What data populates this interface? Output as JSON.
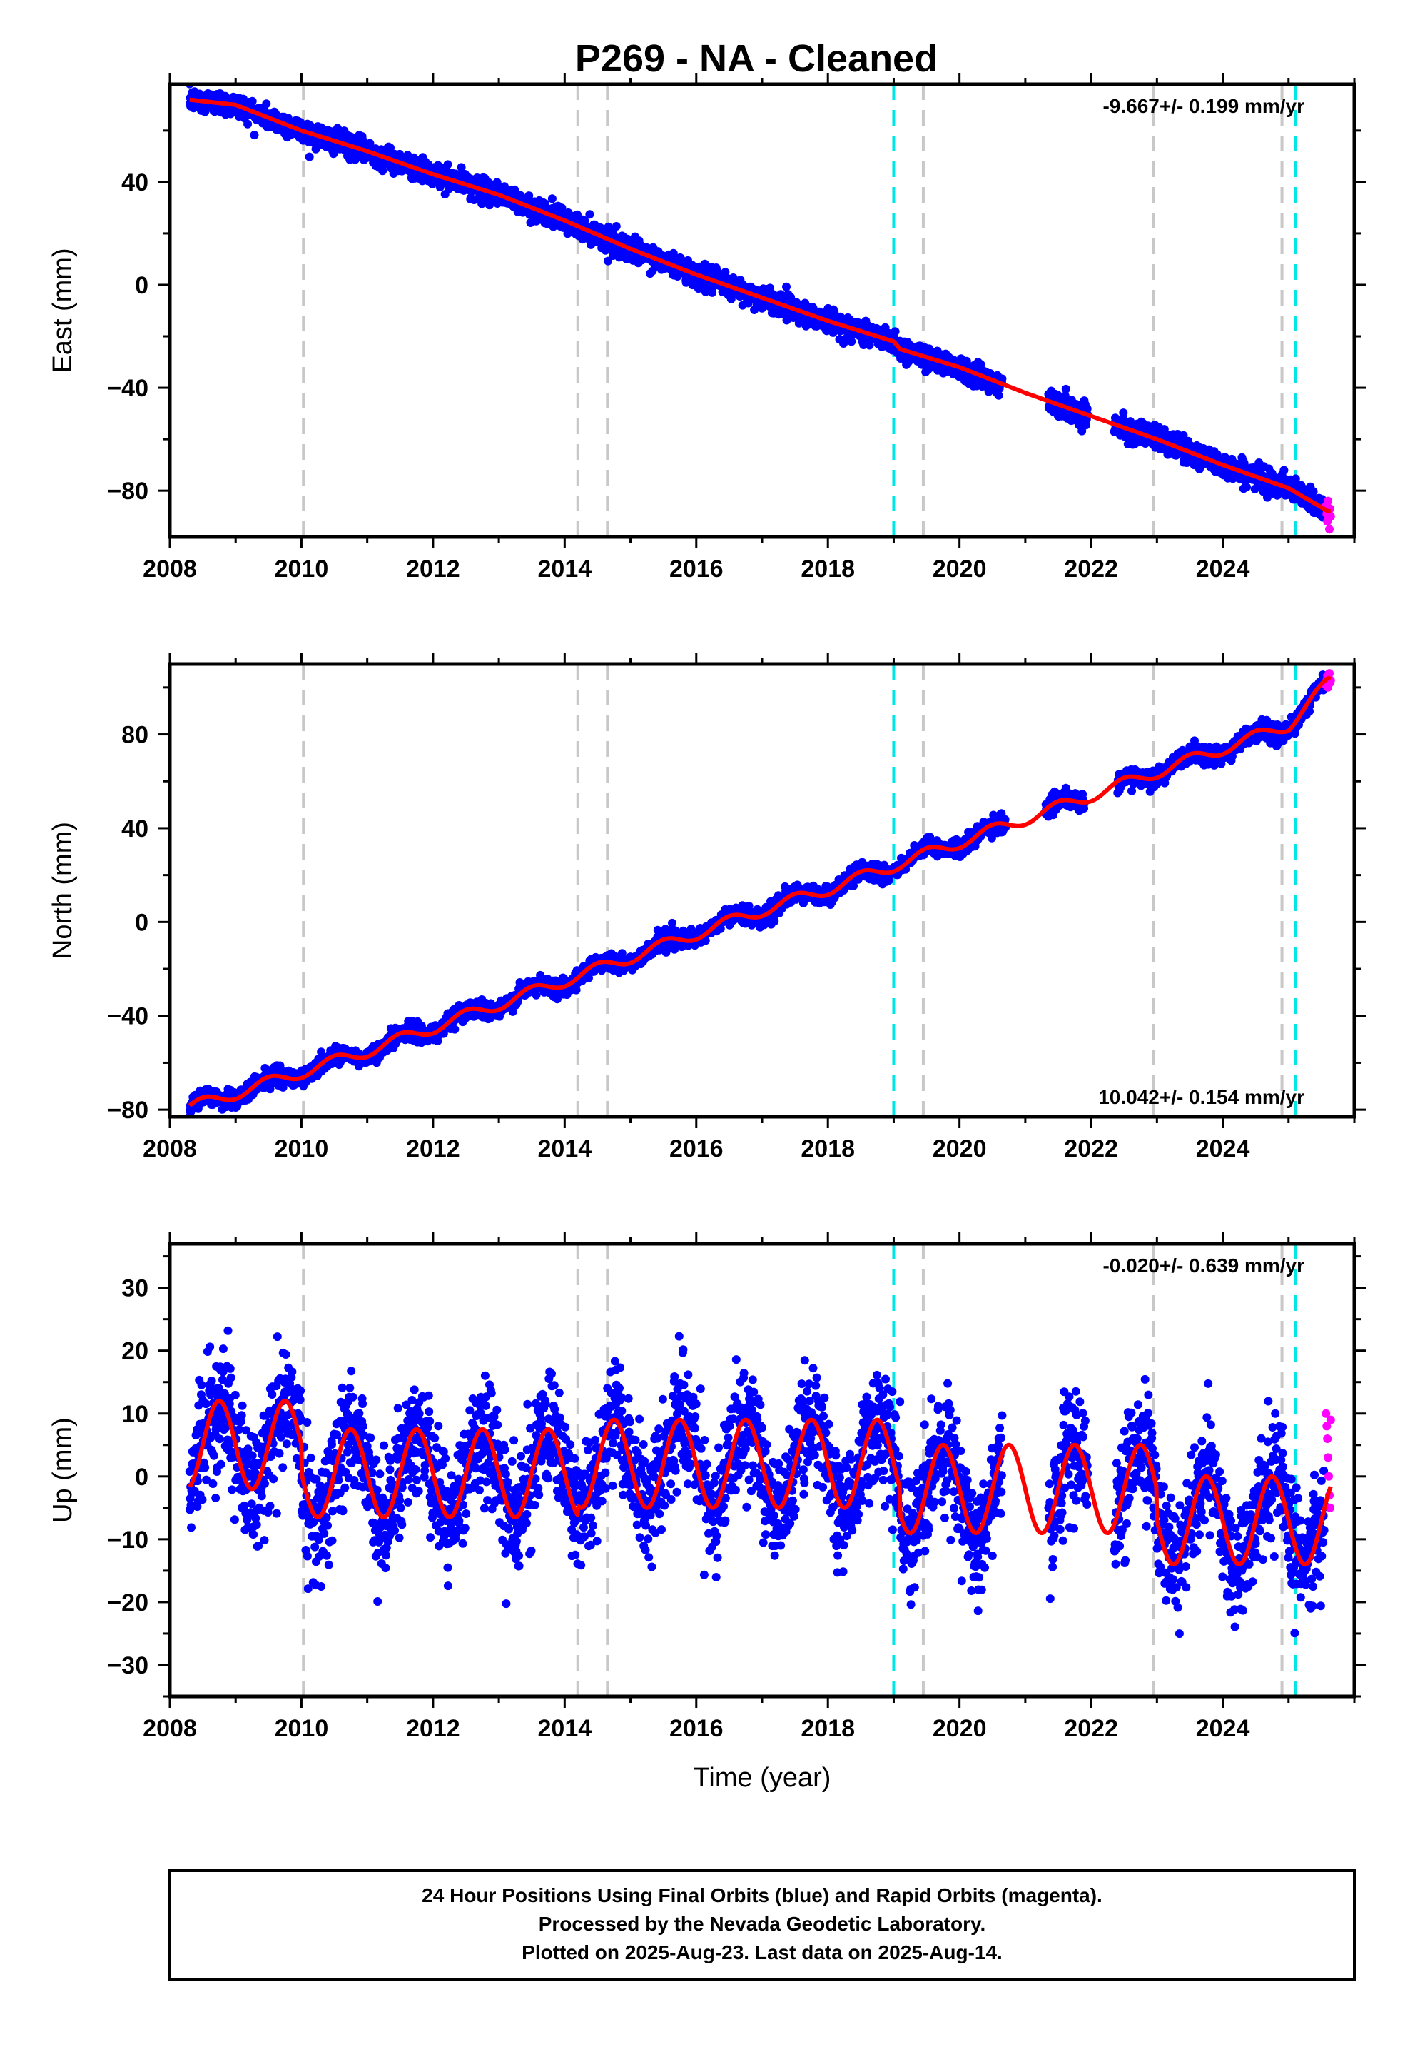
{
  "title": "P269  - NA - Cleaned",
  "colors": {
    "final_orbits": "#0000ff",
    "rapid_orbits": "#ff00ff",
    "model": "#ff0000",
    "event_gray": "#c8c8c8",
    "event_cyan": "#00e5e5"
  },
  "chart_data": [
    {
      "type": "scatter",
      "ylabel": "East (mm)",
      "xlabel": "",
      "xlim": [
        2008,
        2026
      ],
      "ylim": [
        -98,
        78
      ],
      "x_ticks": [
        2008,
        2010,
        2012,
        2014,
        2016,
        2018,
        2020,
        2022,
        2024
      ],
      "y_ticks": [
        -80,
        -40,
        0,
        40
      ],
      "rate": "-9.667+/- 0.199 mm/yr",
      "rate_position": "top-right",
      "model": {
        "x": [
          2008.3,
          2009.0,
          2010.0,
          2011.0,
          2012.0,
          2013.0,
          2014.0,
          2015.0,
          2016.0,
          2017.0,
          2018.0,
          2019.0,
          2019.1,
          2020.0,
          2021.0,
          2022.0,
          2023.0,
          2024.0,
          2025.0,
          2025.6
        ],
        "y": [
          72.0,
          70.0,
          60.0,
          52.0,
          43.0,
          35.0,
          25.0,
          14.0,
          4.0,
          -5.0,
          -14.0,
          -22.0,
          -25.0,
          -32.0,
          -42.0,
          -51.0,
          -60.0,
          -70.0,
          -79.0,
          -88.0
        ]
      },
      "final_orbits": {
        "x_range": [
          2008.3,
          2025.55
        ],
        "noise_mm": 2.2,
        "count": 3400,
        "gaps": [
          [
            2020.65,
            2021.35
          ],
          [
            2021.95,
            2022.35
          ]
        ]
      },
      "rapid_orbits": {
        "x": [
          2025.57,
          2025.58,
          2025.59,
          2025.6,
          2025.61,
          2025.62,
          2025.63,
          2025.64
        ],
        "y": [
          -86,
          -89,
          -92,
          -84,
          -88,
          -95,
          -87,
          -90
        ]
      }
    },
    {
      "type": "scatter",
      "ylabel": "North (mm)",
      "xlabel": "",
      "xlim": [
        2008,
        2026
      ],
      "ylim": [
        -83,
        110
      ],
      "x_ticks": [
        2008,
        2010,
        2012,
        2014,
        2016,
        2018,
        2020,
        2022,
        2024
      ],
      "y_ticks": [
        -80,
        -40,
        0,
        40,
        80
      ],
      "rate": "10.042+/- 0.154 mm/yr",
      "rate_position": "bottom-right",
      "model": {
        "x": [
          2008.3,
          2009.0,
          2010.0,
          2011.0,
          2012.0,
          2013.0,
          2014.0,
          2015.0,
          2016.0,
          2017.0,
          2018.0,
          2019.0,
          2020.0,
          2021.0,
          2022.0,
          2023.0,
          2024.0,
          2025.0,
          2025.6
        ],
        "y": [
          -79.0,
          -73.0,
          -64.0,
          -55.0,
          -45.0,
          -35.0,
          -25.0,
          -15.0,
          -5.0,
          5.0,
          14.0,
          24.0,
          34.0,
          44.0,
          54.0,
          64.0,
          74.0,
          84.0,
          102.0
        ],
        "seasonal_amplitude": 2.5
      },
      "final_orbits": {
        "x_range": [
          2008.3,
          2025.55
        ],
        "noise_mm": 1.8,
        "count": 3400,
        "gaps": [
          [
            2020.7,
            2021.3
          ],
          [
            2021.9,
            2022.4
          ]
        ]
      },
      "rapid_orbits": {
        "x": [
          2025.57,
          2025.58,
          2025.59,
          2025.6,
          2025.61,
          2025.62,
          2025.63,
          2025.64
        ],
        "y": [
          101,
          103,
          105,
          100,
          104,
          106,
          102,
          103
        ]
      }
    },
    {
      "type": "scatter",
      "ylabel": "Up (mm)",
      "xlabel": "Time (year)",
      "xlim": [
        2008,
        2026
      ],
      "ylim": [
        -35,
        37
      ],
      "x_ticks": [
        2008,
        2010,
        2012,
        2014,
        2016,
        2018,
        2020,
        2022,
        2024
      ],
      "y_ticks": [
        -30,
        -20,
        -10,
        0,
        10,
        20,
        30
      ],
      "rate": "-0.020+/- 0.639 mm/yr",
      "rate_position": "top-right",
      "model": {
        "segments": [
          {
            "x_range": [
              2008.3,
              2010.0
            ],
            "mean": 5.0,
            "amplitude": 7.0
          },
          {
            "x_range": [
              2010.0,
              2014.2
            ],
            "mean": 0.5,
            "amplitude": 7.0
          },
          {
            "x_range": [
              2014.2,
              2019.1
            ],
            "mean": 2.0,
            "amplitude": 7.0
          },
          {
            "x_range": [
              2019.1,
              2023.0
            ],
            "mean": -2.0,
            "amplitude": 7.0
          },
          {
            "x_range": [
              2023.0,
              2025.6
            ],
            "mean": -7.0,
            "amplitude": 7.0
          }
        ],
        "peak_phase_year_fraction": 0.75
      },
      "final_orbits": {
        "x_range": [
          2008.3,
          2025.55
        ],
        "noise_mm": 4.5,
        "count": 3400,
        "gaps": [
          [
            2020.65,
            2021.35
          ],
          [
            2021.95,
            2022.35
          ]
        ]
      },
      "rapid_orbits": {
        "x": [
          2025.57,
          2025.58,
          2025.59,
          2025.6,
          2025.61,
          2025.62,
          2025.63,
          2025.64
        ],
        "y": [
          10,
          8,
          6,
          3,
          0,
          -3,
          -5,
          9
        ]
      }
    }
  ],
  "events": {
    "gray": [
      2010.03,
      2014.2,
      2014.65,
      2019.45,
      2022.95,
      2024.9
    ],
    "cyan": [
      2019.0,
      2025.1
    ]
  },
  "footer": {
    "line1": "24 Hour Positions Using Final Orbits (blue) and Rapid Orbits (magenta).",
    "line2": "Processed by the Nevada Geodetic Laboratory.",
    "line3": "Plotted on 2025-Aug-23. Last data on 2025-Aug-14."
  }
}
